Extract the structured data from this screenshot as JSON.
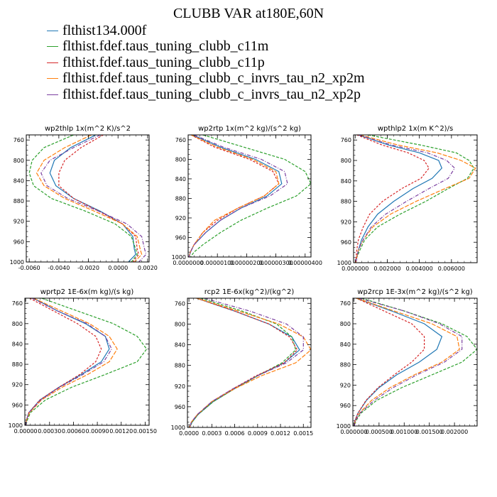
{
  "figure": {
    "title": "CLUBB VAR at180E,60N",
    "legend": [
      {
        "label": "flthist134.000f",
        "color": "#1f77b4"
      },
      {
        "label": "flthist.fdef.taus_tuning_clubb_c11m",
        "color": "#2ca02c"
      },
      {
        "label": "flthist.fdef.taus_tuning_clubb_c11p",
        "color": "#d62728"
      },
      {
        "label": "flthist.fdef.taus_tuning_clubb_c_invrs_tau_n2_xp2m",
        "color": "#ff7f0e"
      },
      {
        "label": "flthist.fdef.taus_tuning_clubb_c_invrs_tau_n2_xp2p",
        "color": "#7b3fa0"
      }
    ]
  },
  "chart_data": [
    {
      "type": "line",
      "title": "wp2thlp  1x(m^2 K)/s^2",
      "y": [
        750,
        775,
        800,
        825,
        850,
        875,
        900,
        925,
        950,
        975,
        985,
        1000
      ],
      "ylim": [
        750,
        1000
      ],
      "yticks": [
        760,
        800,
        840,
        880,
        920,
        960,
        1000
      ],
      "xlim": [
        -0.0062,
        0.0021
      ],
      "xticks": [
        -0.006,
        -0.004,
        -0.002,
        0.0,
        0.002
      ],
      "xtick_labels": [
        "-0.0060",
        "-0.0040",
        "-0.0020",
        "0.0000",
        "0.0020"
      ],
      "series": [
        {
          "values": [
            -0.0015,
            -0.0032,
            -0.0043,
            -0.0046,
            -0.0042,
            -0.003,
            -0.0012,
            0.0003,
            0.001,
            0.0011,
            0.0012,
            0.0007
          ]
        },
        {
          "values": [
            -0.003,
            -0.005,
            -0.0058,
            -0.006,
            -0.0057,
            -0.0045,
            -0.0022,
            -0.0002,
            0.0009,
            0.0012,
            0.0013,
            0.0009
          ]
        },
        {
          "values": [
            -0.001,
            -0.0025,
            -0.0036,
            -0.004,
            -0.004,
            -0.003,
            -0.0013,
            0.0003,
            0.0012,
            0.0013,
            0.0014,
            0.001
          ]
        },
        {
          "values": [
            -0.0018,
            -0.0036,
            -0.005,
            -0.0055,
            -0.005,
            -0.0036,
            -0.0016,
            0.0003,
            0.0013,
            0.0015,
            0.0016,
            0.0011
          ]
        },
        {
          "values": [
            -0.0012,
            -0.003,
            -0.0046,
            -0.0052,
            -0.0048,
            -0.0034,
            -0.0013,
            0.0006,
            0.0016,
            0.0018,
            0.0019,
            0.0014
          ]
        }
      ]
    },
    {
      "type": "line",
      "title": "wp2rtp  1x(m^2 kg)/(s^2 kg)",
      "y": [
        750,
        775,
        800,
        825,
        850,
        875,
        900,
        925,
        950,
        975,
        990,
        1000
      ],
      "ylim": [
        750,
        1000
      ],
      "yticks": [
        760,
        800,
        840,
        880,
        920,
        960,
        1000
      ],
      "xlim": [
        0,
        4.2e-06
      ],
      "xticks": [
        0,
        1e-06,
        2e-06,
        3e-06,
        4e-06
      ],
      "xtick_labels": [
        "0.0000000",
        "0.00000100",
        "0.00000200",
        "0.00000300",
        "0.00000400"
      ],
      "series": [
        {
          "values": [
            1.5e-07,
            1.1e-06,
            2.3e-06,
            3.1e-06,
            3.2e-06,
            2.7e-06,
            1.8e-06,
            1.1e-06,
            6e-07,
            2e-07,
            8e-08,
            3e-08
          ]
        },
        {
          "values": [
            5e-07,
            1.9e-06,
            3.3e-06,
            4e-06,
            4.2e-06,
            3.7e-06,
            2.7e-06,
            1.8e-06,
            1.1e-06,
            5e-07,
            2e-07,
            8e-08
          ]
        },
        {
          "values": [
            1e-07,
            9e-07,
            2.1e-06,
            2.9e-06,
            3.1e-06,
            2.6e-06,
            1.7e-06,
            1e-06,
            5e-07,
            2e-07,
            7e-08,
            3e-08
          ]
        },
        {
          "values": [
            1e-07,
            1e-06,
            2.2e-06,
            3e-06,
            3.1e-06,
            2.6e-06,
            1.7e-06,
            9e-07,
            5e-07,
            2e-07,
            7e-08,
            3e-08
          ]
        },
        {
          "values": [
            2e-07,
            1.2e-06,
            2.5e-06,
            3.3e-06,
            3.4e-06,
            2.8e-06,
            1.8e-06,
            1.1e-06,
            6e-07,
            2e-07,
            8e-08,
            3e-08
          ]
        }
      ]
    },
    {
      "type": "line",
      "title": "wpthlp2  1x(m K^2)/s",
      "y": [
        750,
        770,
        785,
        800,
        815,
        835,
        855,
        880,
        905,
        930,
        955,
        975,
        990,
        1000
      ],
      "ylim": [
        750,
        1000
      ],
      "yticks": [
        760,
        800,
        840,
        880,
        920,
        960,
        1000
      ],
      "xlim": [
        -0.0001,
        0.0076
      ],
      "xticks": [
        0,
        0.002,
        0.004,
        0.006
      ],
      "xtick_labels": [
        "0.000000",
        "0.002000",
        "0.004000",
        "0.006000"
      ],
      "series": [
        {
          "values": [
            0.0002,
            0.0021,
            0.004,
            0.0052,
            0.0054,
            0.0048,
            0.0036,
            0.0024,
            0.0014,
            0.0008,
            0.0004,
            0.0002,
            0.0001,
            5e-05
          ]
        },
        {
          "values": [
            0.0008,
            0.0041,
            0.0063,
            0.0071,
            0.0074,
            0.007,
            0.0058,
            0.0044,
            0.0028,
            0.0014,
            0.0006,
            0.0003,
            0.0001,
            5e-05
          ]
        },
        {
          "values": [
            0.0001,
            0.0017,
            0.0033,
            0.0043,
            0.0046,
            0.0041,
            0.0029,
            0.0017,
            0.0009,
            0.0005,
            0.0002,
            0.0001,
            5e-05,
            2e-05
          ]
        },
        {
          "values": [
            0.0003,
            0.0027,
            0.0051,
            0.0066,
            0.0075,
            0.0071,
            0.0056,
            0.0038,
            0.0022,
            0.0011,
            0.0005,
            0.0002,
            0.0001,
            5e-05
          ]
        },
        {
          "values": [
            0.0002,
            0.0023,
            0.0045,
            0.0057,
            0.0062,
            0.0058,
            0.0046,
            0.0032,
            0.0019,
            0.001,
            0.0005,
            0.0002,
            0.0001,
            5e-05
          ]
        }
      ]
    },
    {
      "type": "line",
      "title": "wprtp2  1E-6x(m kg)/(s kg)",
      "y": [
        750,
        775,
        800,
        825,
        850,
        875,
        900,
        925,
        950,
        975,
        990,
        1000
      ],
      "ylim": [
        750,
        1000
      ],
      "yticks": [
        760,
        800,
        840,
        880,
        920,
        960,
        1000
      ],
      "xlim": [
        -1e-05,
        0.00155
      ],
      "xticks": [
        0,
        0.0003,
        0.0006,
        0.0009,
        0.0012,
        0.0015
      ],
      "xtick_labels": [
        "0.00000",
        "0.00030",
        "0.00060",
        "0.00090",
        "0.00120",
        "0.00150"
      ],
      "series": [
        {
          "values": [
            0.0001,
            0.0004,
            0.00075,
            0.001,
            0.00105,
            0.00095,
            0.0007,
            0.00042,
            0.00018,
            4e-05,
            1e-05,
            5e-06
          ]
        },
        {
          "values": [
            0.0002,
            0.00065,
            0.0011,
            0.0014,
            0.00152,
            0.0014,
            0.001,
            0.00058,
            0.00025,
            6e-05,
            2e-05,
            5e-06
          ]
        },
        {
          "values": [
            5e-05,
            0.00035,
            0.00065,
            0.00088,
            0.00095,
            0.00088,
            0.00068,
            0.00042,
            0.00018,
            4e-05,
            1e-05,
            5e-06
          ]
        },
        {
          "values": [
            0.0001,
            0.00045,
            0.0008,
            0.00105,
            0.00115,
            0.00105,
            0.00078,
            0.00046,
            0.0002,
            5e-05,
            1e-05,
            5e-06
          ]
        },
        {
          "values": [
            8e-05,
            0.0004,
            0.00077,
            0.001,
            0.00108,
            0.00098,
            0.00072,
            0.00043,
            0.00019,
            4e-05,
            1e-05,
            5e-06
          ]
        }
      ]
    },
    {
      "type": "line",
      "title": "rcp2  1E-6x(kg^2)/(kg^2)",
      "y": [
        750,
        775,
        800,
        825,
        850,
        875,
        900,
        925,
        950,
        975,
        990,
        1000
      ],
      "ylim": [
        750,
        1000
      ],
      "yticks": [
        760,
        800,
        840,
        880,
        920,
        960,
        1000
      ],
      "xlim": [
        -2e-05,
        0.0016
      ],
      "xticks": [
        0,
        0.0003,
        0.0006,
        0.0009,
        0.0012,
        0.0015
      ],
      "xtick_labels": [
        "0.0000",
        "0.0003",
        "0.0006",
        "0.0009",
        "0.0012",
        "0.0015"
      ],
      "series": [
        {
          "values": [
            0.0001,
            0.0006,
            0.00105,
            0.00135,
            0.00145,
            0.00125,
            0.0009,
            0.0006,
            0.00032,
            0.00012,
            4e-05,
            1e-05
          ]
        },
        {
          "values": [
            0.00015,
            0.0007,
            0.00115,
            0.00135,
            0.0014,
            0.00122,
            0.0009,
            0.0006,
            0.00032,
            0.00012,
            4e-05,
            1e-05
          ]
        },
        {
          "values": [
            0.0001,
            0.0006,
            0.00105,
            0.00132,
            0.00142,
            0.00125,
            0.00088,
            0.00058,
            0.0003,
            0.00011,
            3e-05,
            1e-05
          ]
        },
        {
          "values": [
            0.0001,
            0.00065,
            0.00118,
            0.0015,
            0.0016,
            0.0014,
            0.00095,
            0.0006,
            0.0003,
            0.00011,
            3e-05,
            1e-05
          ]
        },
        {
          "values": [
            0.0002,
            0.0008,
            0.00128,
            0.0015,
            0.0015,
            0.00128,
            0.0009,
            0.00058,
            0.0003,
            0.00011,
            3e-05,
            1e-05
          ]
        }
      ]
    },
    {
      "type": "line",
      "title": "wp2rcp  1E-3x(m^2 kg)/(s^2 kg)",
      "y": [
        750,
        775,
        800,
        825,
        850,
        875,
        900,
        925,
        950,
        975,
        990,
        1000
      ],
      "ylim": [
        750,
        1000
      ],
      "yticks": [
        760,
        800,
        840,
        880,
        920,
        960,
        1000
      ],
      "xlim": [
        -2e-05,
        0.00245
      ],
      "xticks": [
        0,
        0.0005,
        0.001,
        0.0015,
        0.002
      ],
      "xtick_labels": [
        "0.000000",
        "0.000500",
        "0.001000",
        "0.001500",
        "0.002000"
      ],
      "series": [
        {
          "values": [
            5e-05,
            0.00075,
            0.0014,
            0.00175,
            0.00165,
            0.0013,
            0.00085,
            0.0005,
            0.00025,
            8e-05,
            2e-05,
            5e-06
          ]
        },
        {
          "values": [
            0.00015,
            0.001,
            0.00175,
            0.00225,
            0.00245,
            0.00215,
            0.00155,
            0.00095,
            0.00045,
            0.00014,
            4e-05,
            1e-05
          ]
        },
        {
          "values": [
            5e-05,
            0.0006,
            0.00115,
            0.0014,
            0.0014,
            0.00115,
            0.0008,
            0.00048,
            0.00024,
            8e-05,
            2e-05,
            5e-06
          ]
        },
        {
          "values": [
            5e-05,
            0.0008,
            0.00155,
            0.00205,
            0.0021,
            0.00175,
            0.0012,
            0.00072,
            0.00035,
            0.00011,
            3e-05,
            8e-06
          ]
        },
        {
          "values": [
            0.0001,
            0.001,
            0.0017,
            0.00215,
            0.00215,
            0.0018,
            0.00125,
            0.00078,
            0.0004,
            0.00012,
            3e-05,
            1e-05
          ]
        }
      ]
    }
  ]
}
